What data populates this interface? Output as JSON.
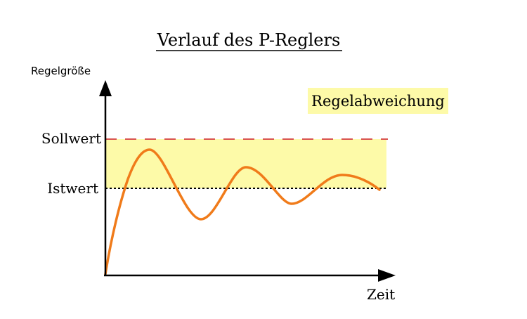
{
  "title": "Verlauf des P-Reglers",
  "y_axis_label": "Regelgröße",
  "x_axis_label": "Zeit",
  "setpoint_label": "Sollwert",
  "actual_label": "Istwert",
  "deviation_label": "Regelabweichung",
  "colors": {
    "curve": "#f07b1a",
    "setpoint_line": "#d9534f",
    "deviation_band": "#fdfaa8",
    "legend_box": "#fdfaa8",
    "axis": "#000000"
  }
}
